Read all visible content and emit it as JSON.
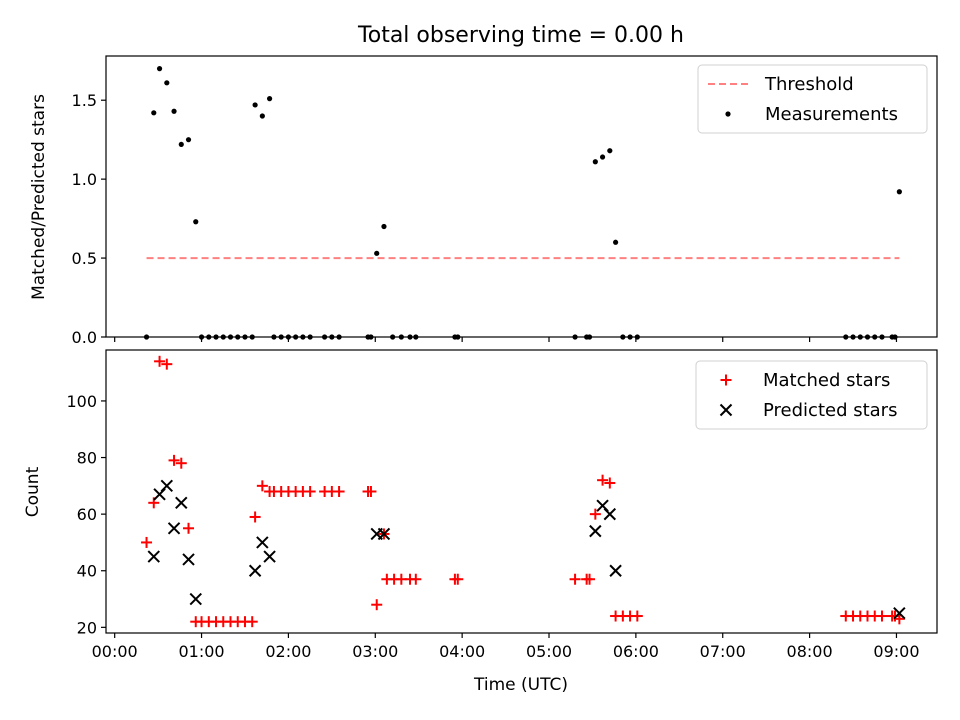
{
  "title": "Total observing time = 0.00 h",
  "colors": {
    "threshold": "#ff8080",
    "matched": "#ff0000",
    "predicted": "#000000",
    "measurement": "#000000"
  },
  "chart_data": [
    {
      "type": "scatter",
      "panel": "top",
      "xlabel": "",
      "ylabel": "Matched/Predicted stars",
      "xlim": [
        "23:54",
        "09:28"
      ],
      "ylim": [
        0,
        1.78
      ],
      "yticks": [
        {
          "v": 0,
          "label": "0.0"
        },
        {
          "v": 0.5,
          "label": "0.5"
        },
        {
          "v": 1.0,
          "label": "1.0"
        },
        {
          "v": 1.5,
          "label": "1.5"
        }
      ],
      "legend": {
        "placement": "top-right",
        "entries": [
          "Threshold",
          "Measurements"
        ]
      },
      "threshold": {
        "name": "Threshold",
        "y": 0.5,
        "x": [
          "00:22",
          "09:02"
        ]
      },
      "series": [
        {
          "name": "Measurements",
          "points": [
            {
              "x": "00:22",
              "y": 0.0
            },
            {
              "x": "00:27",
              "y": 1.42
            },
            {
              "x": "00:31",
              "y": 1.7
            },
            {
              "x": "00:36",
              "y": 1.61
            },
            {
              "x": "00:41",
              "y": 1.43
            },
            {
              "x": "00:46",
              "y": 1.22
            },
            {
              "x": "00:51",
              "y": 1.25
            },
            {
              "x": "00:56",
              "y": 0.73
            },
            {
              "x": "01:00",
              "y": 0.0
            },
            {
              "x": "01:05",
              "y": 0.0
            },
            {
              "x": "01:10",
              "y": 0.0
            },
            {
              "x": "01:15",
              "y": 0.0
            },
            {
              "x": "01:20",
              "y": 0.0
            },
            {
              "x": "01:25",
              "y": 0.0
            },
            {
              "x": "01:30",
              "y": 0.0
            },
            {
              "x": "01:35",
              "y": 0.0
            },
            {
              "x": "01:37",
              "y": 1.47
            },
            {
              "x": "01:42",
              "y": 1.4
            },
            {
              "x": "01:47",
              "y": 1.51
            },
            {
              "x": "01:50",
              "y": 0.0
            },
            {
              "x": "01:55",
              "y": 0.0
            },
            {
              "x": "02:00",
              "y": 0.0
            },
            {
              "x": "02:05",
              "y": 0.0
            },
            {
              "x": "02:10",
              "y": 0.0
            },
            {
              "x": "02:15",
              "y": 0.0
            },
            {
              "x": "02:25",
              "y": 0.0
            },
            {
              "x": "02:30",
              "y": 0.0
            },
            {
              "x": "02:35",
              "y": 0.0
            },
            {
              "x": "02:55",
              "y": 0.0
            },
            {
              "x": "02:57",
              "y": 0.0
            },
            {
              "x": "03:01",
              "y": 0.53
            },
            {
              "x": "03:06",
              "y": 0.7
            },
            {
              "x": "03:12",
              "y": 0.0
            },
            {
              "x": "03:18",
              "y": 0.0
            },
            {
              "x": "03:24",
              "y": 0.0
            },
            {
              "x": "03:28",
              "y": 0.0
            },
            {
              "x": "03:55",
              "y": 0.0
            },
            {
              "x": "03:57",
              "y": 0.0
            },
            {
              "x": "05:18",
              "y": 0.0
            },
            {
              "x": "05:26",
              "y": 0.0
            },
            {
              "x": "05:28",
              "y": 0.0
            },
            {
              "x": "05:32",
              "y": 1.11
            },
            {
              "x": "05:37",
              "y": 1.14
            },
            {
              "x": "05:42",
              "y": 1.18
            },
            {
              "x": "05:46",
              "y": 0.6
            },
            {
              "x": "05:51",
              "y": 0.0
            },
            {
              "x": "05:56",
              "y": 0.0
            },
            {
              "x": "06:01",
              "y": 0.0
            },
            {
              "x": "08:25",
              "y": 0.0
            },
            {
              "x": "08:30",
              "y": 0.0
            },
            {
              "x": "08:35",
              "y": 0.0
            },
            {
              "x": "08:40",
              "y": 0.0
            },
            {
              "x": "08:45",
              "y": 0.0
            },
            {
              "x": "08:50",
              "y": 0.0
            },
            {
              "x": "08:57",
              "y": 0.0
            },
            {
              "x": "08:59",
              "y": 0.0
            },
            {
              "x": "09:02",
              "y": 0.92
            }
          ]
        }
      ]
    },
    {
      "type": "scatter",
      "panel": "bottom",
      "xlabel": "Time (UTC)",
      "ylabel": "Count",
      "xlim": [
        "23:54",
        "09:28"
      ],
      "ylim": [
        18,
        118
      ],
      "xticks": [
        "00:00",
        "01:00",
        "02:00",
        "03:00",
        "04:00",
        "05:00",
        "06:00",
        "07:00",
        "08:00",
        "09:00"
      ],
      "yticks": [
        {
          "v": 20,
          "label": "20"
        },
        {
          "v": 40,
          "label": "40"
        },
        {
          "v": 60,
          "label": "60"
        },
        {
          "v": 80,
          "label": "80"
        },
        {
          "v": 100,
          "label": "100"
        }
      ],
      "legend": {
        "placement": "top-right",
        "entries": [
          "Matched stars",
          "Predicted stars"
        ]
      },
      "series": [
        {
          "name": "Matched stars",
          "marker": "plus",
          "points": [
            {
              "x": "00:22",
              "y": 50
            },
            {
              "x": "00:27",
              "y": 64
            },
            {
              "x": "00:31",
              "y": 114
            },
            {
              "x": "00:36",
              "y": 113
            },
            {
              "x": "00:41",
              "y": 79
            },
            {
              "x": "00:46",
              "y": 78
            },
            {
              "x": "00:51",
              "y": 55
            },
            {
              "x": "00:56",
              "y": 22
            },
            {
              "x": "01:00",
              "y": 22
            },
            {
              "x": "01:05",
              "y": 22
            },
            {
              "x": "01:10",
              "y": 22
            },
            {
              "x": "01:15",
              "y": 22
            },
            {
              "x": "01:20",
              "y": 22
            },
            {
              "x": "01:25",
              "y": 22
            },
            {
              "x": "01:30",
              "y": 22
            },
            {
              "x": "01:35",
              "y": 22
            },
            {
              "x": "01:37",
              "y": 59
            },
            {
              "x": "01:42",
              "y": 70
            },
            {
              "x": "01:47",
              "y": 68
            },
            {
              "x": "01:50",
              "y": 68
            },
            {
              "x": "01:55",
              "y": 68
            },
            {
              "x": "02:00",
              "y": 68
            },
            {
              "x": "02:05",
              "y": 68
            },
            {
              "x": "02:10",
              "y": 68
            },
            {
              "x": "02:15",
              "y": 68
            },
            {
              "x": "02:25",
              "y": 68
            },
            {
              "x": "02:30",
              "y": 68
            },
            {
              "x": "02:35",
              "y": 68
            },
            {
              "x": "02:55",
              "y": 68
            },
            {
              "x": "02:57",
              "y": 68
            },
            {
              "x": "03:01",
              "y": 28
            },
            {
              "x": "03:06",
              "y": 53
            },
            {
              "x": "03:08",
              "y": 37
            },
            {
              "x": "03:13",
              "y": 37
            },
            {
              "x": "03:18",
              "y": 37
            },
            {
              "x": "03:24",
              "y": 37
            },
            {
              "x": "03:28",
              "y": 37
            },
            {
              "x": "03:55",
              "y": 37
            },
            {
              "x": "03:57",
              "y": 37
            },
            {
              "x": "05:18",
              "y": 37
            },
            {
              "x": "05:26",
              "y": 37
            },
            {
              "x": "05:28",
              "y": 37
            },
            {
              "x": "05:32",
              "y": 60
            },
            {
              "x": "05:37",
              "y": 72
            },
            {
              "x": "05:42",
              "y": 71
            },
            {
              "x": "05:46",
              "y": 24
            },
            {
              "x": "05:51",
              "y": 24
            },
            {
              "x": "05:56",
              "y": 24
            },
            {
              "x": "06:01",
              "y": 24
            },
            {
              "x": "08:25",
              "y": 24
            },
            {
              "x": "08:30",
              "y": 24
            },
            {
              "x": "08:35",
              "y": 24
            },
            {
              "x": "08:40",
              "y": 24
            },
            {
              "x": "08:45",
              "y": 24
            },
            {
              "x": "08:50",
              "y": 24
            },
            {
              "x": "08:57",
              "y": 24
            },
            {
              "x": "08:59",
              "y": 24
            },
            {
              "x": "09:02",
              "y": 23
            }
          ]
        },
        {
          "name": "Predicted stars",
          "marker": "x",
          "points": [
            {
              "x": "00:27",
              "y": 45
            },
            {
              "x": "00:31",
              "y": 67
            },
            {
              "x": "00:36",
              "y": 70
            },
            {
              "x": "00:41",
              "y": 55
            },
            {
              "x": "00:46",
              "y": 64
            },
            {
              "x": "00:51",
              "y": 44
            },
            {
              "x": "00:56",
              "y": 30
            },
            {
              "x": "01:37",
              "y": 40
            },
            {
              "x": "01:42",
              "y": 50
            },
            {
              "x": "01:47",
              "y": 45
            },
            {
              "x": "03:01",
              "y": 53
            },
            {
              "x": "03:06",
              "y": 53
            },
            {
              "x": "05:32",
              "y": 54
            },
            {
              "x": "05:37",
              "y": 63
            },
            {
              "x": "05:42",
              "y": 60
            },
            {
              "x": "05:46",
              "y": 40
            },
            {
              "x": "09:02",
              "y": 25
            }
          ]
        }
      ]
    }
  ]
}
